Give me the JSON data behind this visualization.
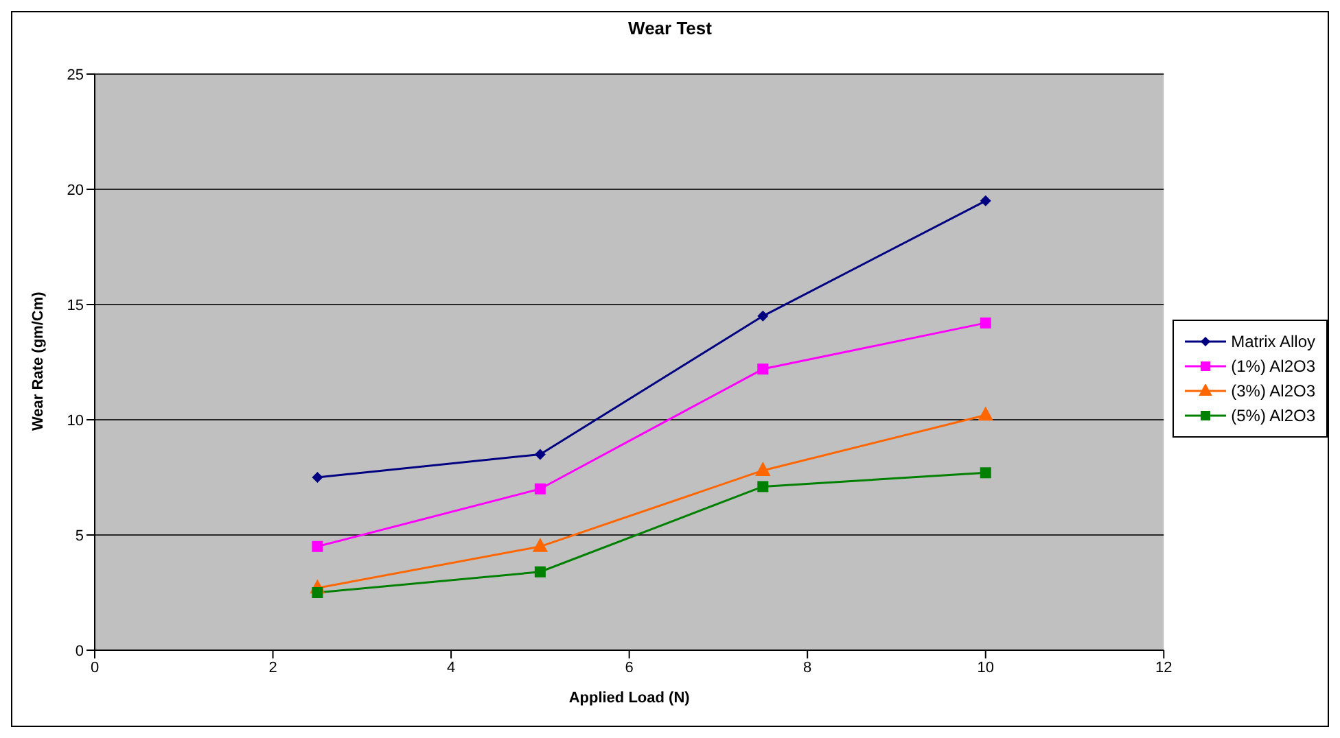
{
  "chart_data": {
    "type": "line",
    "title": "Wear Test",
    "xlabel": "Applied Load (N)",
    "ylabel": "Wear Rate (gm/Cm)",
    "x": [
      2.5,
      5,
      7.5,
      10
    ],
    "xlim": [
      0,
      12
    ],
    "xticks": [
      0,
      2,
      4,
      6,
      8,
      10,
      12
    ],
    "ylim": [
      0,
      25
    ],
    "yticks": [
      0,
      5,
      10,
      15,
      20,
      25
    ],
    "grid": "y",
    "legend": "right",
    "line_style": "solid",
    "series": [
      {
        "name": "Matrix Alloy",
        "color": "#000080",
        "marker": "diamond",
        "values": [
          7.5,
          8.5,
          14.5,
          19.5
        ]
      },
      {
        "name": "(1%) Al2O3",
        "color": "#ff00ff",
        "marker": "square",
        "values": [
          4.5,
          7.0,
          12.2,
          14.2
        ]
      },
      {
        "name": "(3%) Al2O3",
        "color": "#ff6600",
        "marker": "triangle",
        "values": [
          2.7,
          4.5,
          7.8,
          10.2
        ]
      },
      {
        "name": "(5%) Al2O3",
        "color": "#008000",
        "marker": "square",
        "values": [
          2.5,
          3.4,
          7.1,
          7.7
        ]
      }
    ]
  }
}
